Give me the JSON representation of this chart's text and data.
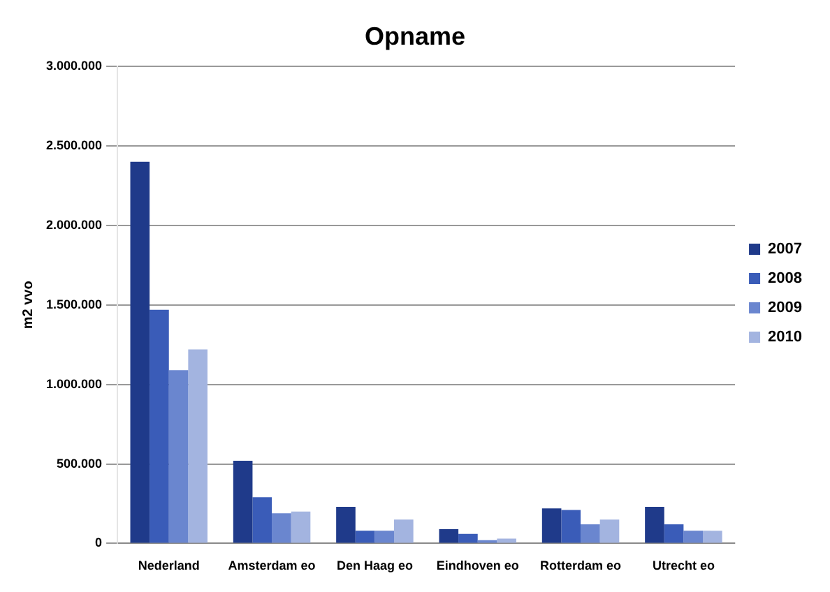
{
  "chart_data": {
    "type": "bar",
    "title": "Opname",
    "ylabel": "m2 vvo",
    "categories": [
      "Nederland",
      "Amsterdam eo",
      "Den Haag eo",
      "Eindhoven eo",
      "Rotterdam eo",
      "Utrecht eo"
    ],
    "series": [
      {
        "name": "2007",
        "color": "#1f3a8a",
        "values": [
          2400000,
          520000,
          230000,
          90000,
          220000,
          230000
        ]
      },
      {
        "name": "2008",
        "color": "#3a5cb8",
        "values": [
          1470000,
          290000,
          80000,
          60000,
          210000,
          120000
        ]
      },
      {
        "name": "2009",
        "color": "#6a86cf",
        "values": [
          1090000,
          190000,
          80000,
          20000,
          120000,
          80000
        ]
      },
      {
        "name": "2010",
        "color": "#a3b4e0",
        "values": [
          1220000,
          200000,
          150000,
          30000,
          150000,
          80000
        ]
      }
    ],
    "ylim": [
      0,
      3000000
    ],
    "yticks": [
      0,
      {
        "value": 500000,
        "label": "500.000"
      },
      {
        "value": 1000000,
        "label": "1.000.000"
      },
      {
        "value": 1500000,
        "label": "1.500.000"
      },
      {
        "value": 2000000,
        "label": "2.000.000"
      },
      {
        "value": 2500000,
        "label": "2.500.000"
      },
      {
        "value": 3000000,
        "label": "3.000.000"
      }
    ],
    "grid": "y",
    "legend": "right"
  }
}
